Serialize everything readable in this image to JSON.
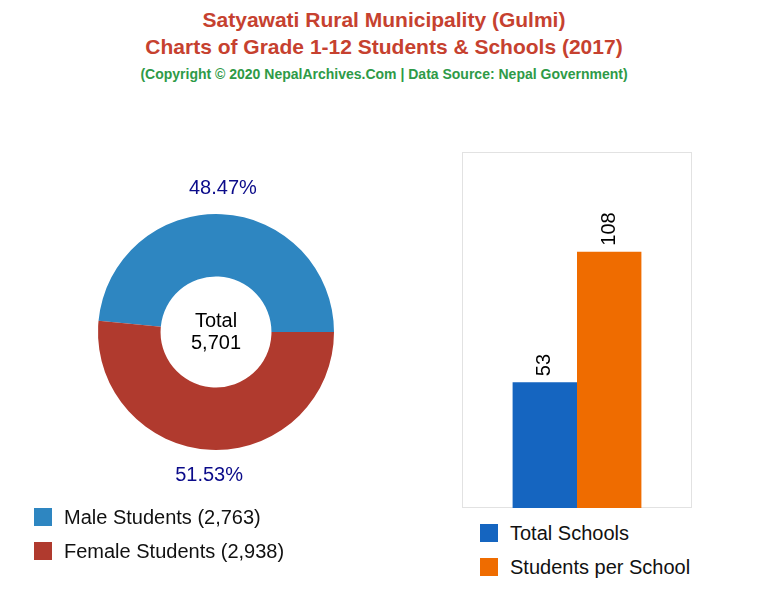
{
  "title": [
    "Satyawati Rural Municipality (Gulmi)",
    "Charts of Grade 1-12 Students & Schools (2017)"
  ],
  "subtitle": "(Copyright © 2020 NepalArchives.Com | Data Source: Nepal Government)",
  "chart_data": [
    {
      "type": "doughnut",
      "categories": [
        "Male Students (2,763)",
        "Female Students (2,938)"
      ],
      "values": [
        48.47,
        51.53
      ],
      "value_labels": [
        "48.47%",
        "51.53%"
      ],
      "colors": [
        "#2e86c1",
        "#b03a2e"
      ],
      "data_labels": true,
      "annotations": [
        "Total",
        "5,701"
      ]
    },
    {
      "type": "bar",
      "categories": [
        null
      ],
      "series": [
        {
          "name": "Total Schools",
          "color": "#1565c0",
          "values": [
            53
          ]
        },
        {
          "name": "Students per School",
          "color": "#ef6c00",
          "values": [
            108
          ]
        }
      ],
      "ylim": [
        0,
        150
      ],
      "tick_labels": false,
      "grid": false,
      "data_labels": true
    }
  ]
}
